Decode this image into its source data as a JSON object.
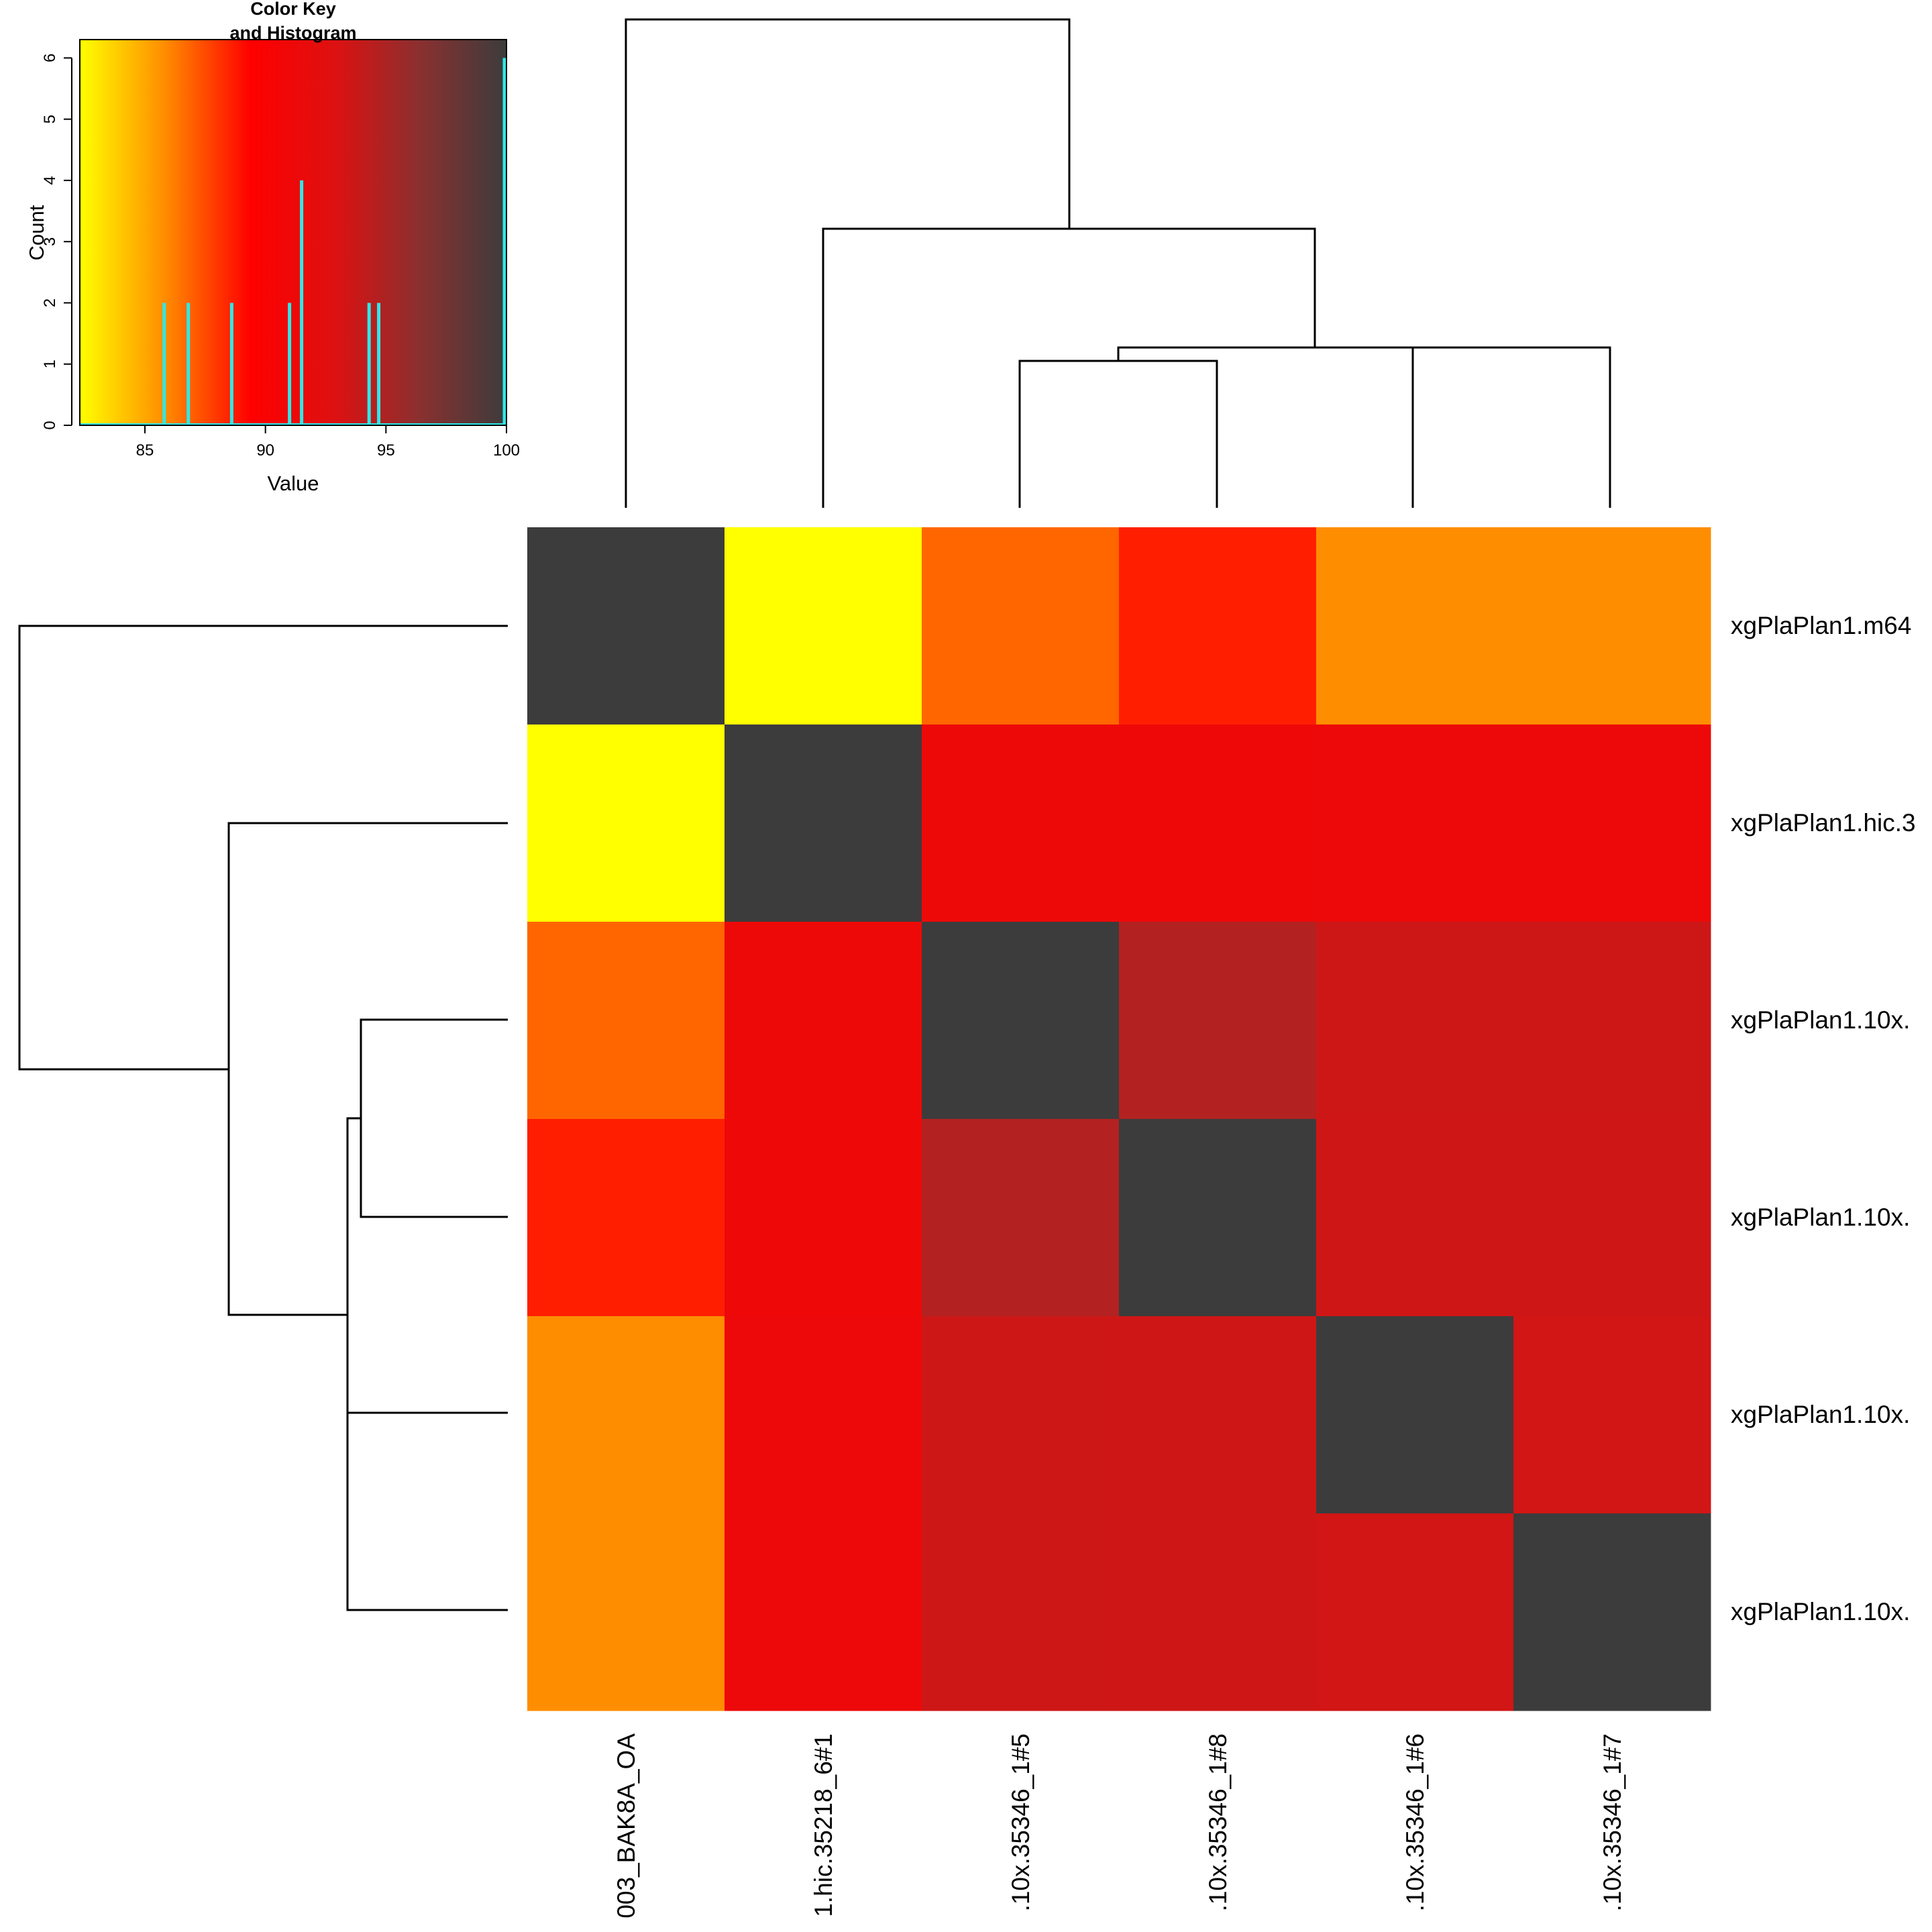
{
  "chart_data": [
    {
      "type": "heatmap",
      "row_labels": [
        "xgPlaPlan1.m64",
        "xgPlaPlan1.hic.3",
        "xgPlaPlan1.10x.",
        "xgPlaPlan1.10x.",
        "xgPlaPlan1.10x.",
        "xgPlaPlan1.10x."
      ],
      "col_labels": [
        "003_BAK8A_OA",
        "1.hic.35218_6#1",
        ".10x.35346_1#5",
        ".10x.35346_1#8",
        ".10x.35346_1#6",
        ".10x.35346_1#7"
      ],
      "values": [
        [
          100,
          82.3,
          86.8,
          88.6,
          85.8,
          85.8
        ],
        [
          82.3,
          100,
          91.2,
          91.1,
          91.3,
          91.3
        ],
        [
          86.8,
          91.2,
          100,
          94.7,
          93.6,
          93.6
        ],
        [
          88.6,
          91.1,
          94.7,
          100,
          93.5,
          93.5
        ],
        [
          85.8,
          91.3,
          93.6,
          93.5,
          100,
          93.4
        ],
        [
          85.8,
          91.3,
          93.6,
          93.5,
          93.4,
          100
        ]
      ],
      "color_scale": [
        "#ffff00",
        "#ff8c00",
        "#ff0000",
        "#dd1111",
        "#893030",
        "#3c3c3c"
      ],
      "value_range": [
        82.3,
        100
      ]
    },
    {
      "type": "bar",
      "title": "Color Key\nand Histogram",
      "xlabel": "Value",
      "ylabel": "Count",
      "xlim": [
        82.3,
        100
      ],
      "ylim": [
        0,
        6.3
      ],
      "x_ticks": [
        "85",
        "90",
        "95",
        "100"
      ],
      "y_ticks": [
        "0",
        "1",
        "2",
        "3",
        "4",
        "5",
        "6"
      ],
      "x": [
        85.8,
        86.8,
        88.6,
        91.0,
        91.5,
        94.3,
        94.7,
        100
      ],
      "values": [
        2,
        2,
        2,
        2,
        4,
        2,
        2,
        6
      ],
      "bar_color": "#2ee8e8"
    }
  ]
}
